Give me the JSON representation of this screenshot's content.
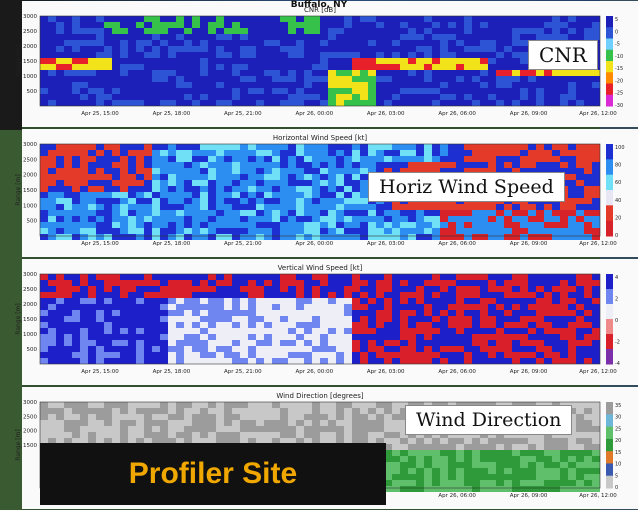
{
  "figure": {
    "location": "Buffalo, NY",
    "site_label": "Profiler Site"
  },
  "chart_data": [
    {
      "type": "heatmap",
      "subtitle": "CNR [dB]",
      "overlay": "CNR",
      "ylabel": "Range [m]",
      "ylim": [
        0,
        3000
      ],
      "yticks": [
        "500",
        "1000",
        "1500",
        "2000",
        "2500",
        "3000"
      ],
      "xticks": [
        "Apr 25, 15:00",
        "Apr 25, 18:00",
        "Apr 25, 21:00",
        "Apr 26, 00:00",
        "Apr 26, 03:00",
        "Apr 26, 06:00",
        "Apr 26, 09:00",
        "Apr 26, 12:00"
      ],
      "colorbar": [
        "5",
        "0",
        "-5",
        "-10",
        "-15",
        "-20",
        "-25",
        "-30"
      ],
      "colors": [
        "#1c1fb8",
        "#2e54d6",
        "#6fd0ff",
        "#36c24a",
        "#f2e21a",
        "#ff8a00",
        "#e8202a",
        "#d92ad6"
      ]
    },
    {
      "type": "heatmap",
      "subtitle": "Horizontal Wind Speed [kt]",
      "overlay": "Horiz Wind Speed",
      "ylabel": "Range [m]",
      "ylim": [
        0,
        3000
      ],
      "yticks": [
        "500",
        "1000",
        "1500",
        "2000",
        "2500",
        "3000"
      ],
      "xticks": [
        "Apr 25, 15:00",
        "Apr 25, 18:00",
        "Apr 25, 21:00",
        "Apr 26, 00:00",
        "Apr 26, 03:00",
        "Apr 26, 06:00",
        "Apr 26, 09:00",
        "Apr 26, 12:00"
      ],
      "colorbar": [
        "100",
        "80",
        "60",
        "40",
        "20",
        "0"
      ],
      "colors": [
        "#1d2fd0",
        "#2c8ef0",
        "#6fe0f5",
        "#e8e6f2",
        "#e33a2a",
        "#d8222a"
      ]
    },
    {
      "type": "heatmap",
      "subtitle": "Vertical Wind Speed [kt]",
      "overlay": "",
      "ylabel": "Range [m]",
      "ylim": [
        0,
        3000
      ],
      "yticks": [
        "500",
        "1000",
        "1500",
        "2000",
        "2500",
        "3000"
      ],
      "xticks": [
        "Apr 25, 15:00",
        "Apr 25, 18:00",
        "Apr 25, 21:00",
        "Apr 26, 00:00",
        "Apr 26, 03:00",
        "Apr 26, 06:00",
        "Apr 26, 09:00",
        "Apr 26, 12:00"
      ],
      "colorbar": [
        "4",
        "2",
        "0",
        "-2",
        "-4"
      ],
      "colors": [
        "#1d20c8",
        "#6f86f0",
        "#eeeef7",
        "#f08a8a",
        "#d81f2a",
        "#7b2fa8"
      ]
    },
    {
      "type": "heatmap",
      "subtitle": "Wind Direction [degrees]",
      "overlay": "Wind Direction",
      "ylabel": "Range [m]",
      "ylim": [
        0,
        3000
      ],
      "yticks": [
        "1500",
        "2000",
        "2500",
        "3000"
      ],
      "xticks": [
        "Apr 26, 06:00",
        "Apr 26, 09:00",
        "Apr 26, 12:00"
      ],
      "colorbar": [
        "35",
        "30",
        "25",
        "20",
        "15",
        "10",
        "5",
        "0"
      ],
      "colors": [
        "#9c9c9c",
        "#6db6d8",
        "#5fbf6a",
        "#2f9a3a",
        "#e07a2a",
        "#3a5ab0",
        "#c8c8c8"
      ]
    }
  ]
}
